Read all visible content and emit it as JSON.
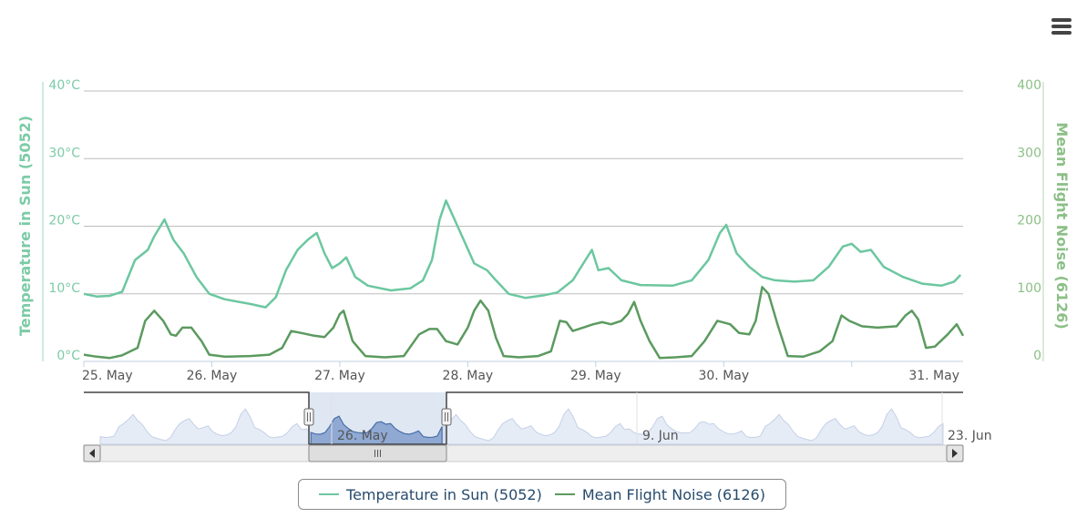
{
  "menu": {
    "icon": "hamburger-menu-icon"
  },
  "colors": {
    "temperature": "#6cc7a0",
    "noise": "#5b9a5f",
    "left_axis": "#7ccba6",
    "right_axis": "#8bbf86",
    "navigator_series": "#4a6fa8",
    "navigator_fill": "#c4d3ea"
  },
  "chart_data": {
    "type": "line",
    "title": "",
    "grid": true,
    "legend_placement": "bottom-center",
    "x_tick_labels": [
      "25. May",
      "26. May",
      "27. May",
      "28. May",
      "29. May",
      "30. May",
      "31. May"
    ],
    "xlim": [
      "25. May",
      "31. May"
    ],
    "y_left": {
      "label": "Temperature in Sun (5052)",
      "ticks": [
        "0°C",
        "10°C",
        "20°C",
        "30°C",
        "40°C"
      ],
      "range": [
        0,
        40
      ]
    },
    "y_right": {
      "label": "Mean Flight Noise (6126)",
      "ticks": [
        "0",
        "100",
        "200",
        "300",
        "400"
      ],
      "range": [
        0,
        400
      ]
    },
    "series": [
      {
        "name": "Temperature in Sun (5052)",
        "axis": "left",
        "points": [
          [
            0.0,
            10.0
          ],
          [
            0.1,
            9.6
          ],
          [
            0.2,
            9.7
          ],
          [
            0.3,
            10.3
          ],
          [
            0.4,
            15.0
          ],
          [
            0.5,
            16.5
          ],
          [
            0.55,
            18.5
          ],
          [
            0.63,
            21.0
          ],
          [
            0.7,
            18.0
          ],
          [
            0.78,
            16.0
          ],
          [
            0.88,
            12.5
          ],
          [
            0.98,
            10.0
          ],
          [
            1.1,
            9.2
          ],
          [
            1.3,
            8.5
          ],
          [
            1.42,
            8.0
          ],
          [
            1.5,
            9.5
          ],
          [
            1.58,
            13.5
          ],
          [
            1.67,
            16.5
          ],
          [
            1.75,
            18.0
          ],
          [
            1.82,
            19.0
          ],
          [
            1.88,
            16.0
          ],
          [
            1.94,
            13.8
          ],
          [
            2.0,
            14.5
          ],
          [
            2.05,
            15.4
          ],
          [
            2.12,
            12.5
          ],
          [
            2.22,
            11.2
          ],
          [
            2.4,
            10.5
          ],
          [
            2.55,
            10.8
          ],
          [
            2.65,
            12.0
          ],
          [
            2.72,
            15.0
          ],
          [
            2.78,
            21.0
          ],
          [
            2.83,
            23.8
          ],
          [
            2.92,
            20.0
          ],
          [
            3.05,
            14.5
          ],
          [
            3.15,
            13.5
          ],
          [
            3.22,
            12.0
          ],
          [
            3.32,
            10.0
          ],
          [
            3.45,
            9.4
          ],
          [
            3.6,
            9.8
          ],
          [
            3.7,
            10.2
          ],
          [
            3.82,
            12.0
          ],
          [
            3.92,
            15.0
          ],
          [
            3.97,
            16.5
          ],
          [
            4.02,
            13.5
          ],
          [
            4.1,
            13.8
          ],
          [
            4.2,
            12.0
          ],
          [
            4.35,
            11.3
          ],
          [
            4.6,
            11.2
          ],
          [
            4.75,
            12.0
          ],
          [
            4.88,
            15.0
          ],
          [
            4.97,
            19.0
          ],
          [
            5.02,
            20.2
          ],
          [
            5.1,
            16.0
          ],
          [
            5.2,
            14.0
          ],
          [
            5.3,
            12.5
          ],
          [
            5.4,
            12.0
          ],
          [
            5.55,
            11.8
          ],
          [
            5.7,
            12.0
          ],
          [
            5.82,
            14.0
          ],
          [
            5.93,
            17.0
          ],
          [
            6.0,
            17.4
          ],
          [
            6.07,
            16.2
          ],
          [
            6.15,
            16.5
          ],
          [
            6.25,
            14.0
          ],
          [
            6.4,
            12.5
          ],
          [
            6.55,
            11.5
          ],
          [
            6.7,
            11.2
          ],
          [
            6.8,
            11.8
          ],
          [
            6.85,
            12.8
          ]
        ]
      },
      {
        "name": "Mean Flight Noise (6126)",
        "axis": "right",
        "points": [
          [
            0.0,
            10
          ],
          [
            0.1,
            7
          ],
          [
            0.2,
            5
          ],
          [
            0.3,
            9
          ],
          [
            0.42,
            20
          ],
          [
            0.48,
            60
          ],
          [
            0.55,
            75
          ],
          [
            0.62,
            60
          ],
          [
            0.68,
            40
          ],
          [
            0.72,
            38
          ],
          [
            0.77,
            50
          ],
          [
            0.84,
            50
          ],
          [
            0.92,
            30
          ],
          [
            0.98,
            10
          ],
          [
            1.1,
            7
          ],
          [
            1.3,
            8
          ],
          [
            1.45,
            10
          ],
          [
            1.55,
            20
          ],
          [
            1.62,
            45
          ],
          [
            1.7,
            42
          ],
          [
            1.8,
            38
          ],
          [
            1.88,
            36
          ],
          [
            1.95,
            50
          ],
          [
            2.0,
            70
          ],
          [
            2.03,
            75
          ],
          [
            2.1,
            30
          ],
          [
            2.2,
            8
          ],
          [
            2.35,
            6
          ],
          [
            2.5,
            8
          ],
          [
            2.62,
            40
          ],
          [
            2.7,
            48
          ],
          [
            2.76,
            48
          ],
          [
            2.83,
            30
          ],
          [
            2.92,
            25
          ],
          [
            3.0,
            50
          ],
          [
            3.05,
            75
          ],
          [
            3.1,
            90
          ],
          [
            3.16,
            75
          ],
          [
            3.22,
            35
          ],
          [
            3.28,
            8
          ],
          [
            3.4,
            6
          ],
          [
            3.55,
            8
          ],
          [
            3.65,
            15
          ],
          [
            3.72,
            60
          ],
          [
            3.77,
            58
          ],
          [
            3.82,
            45
          ],
          [
            3.9,
            50
          ],
          [
            3.98,
            55
          ],
          [
            4.05,
            58
          ],
          [
            4.12,
            55
          ],
          [
            4.2,
            60
          ],
          [
            4.25,
            70
          ],
          [
            4.3,
            88
          ],
          [
            4.35,
            60
          ],
          [
            4.42,
            30
          ],
          [
            4.5,
            5
          ],
          [
            4.62,
            6
          ],
          [
            4.75,
            8
          ],
          [
            4.85,
            30
          ],
          [
            4.95,
            60
          ],
          [
            5.05,
            55
          ],
          [
            5.12,
            42
          ],
          [
            5.2,
            40
          ],
          [
            5.25,
            60
          ],
          [
            5.3,
            110
          ],
          [
            5.35,
            100
          ],
          [
            5.42,
            55
          ],
          [
            5.5,
            8
          ],
          [
            5.62,
            7
          ],
          [
            5.75,
            15
          ],
          [
            5.85,
            30
          ],
          [
            5.92,
            68
          ],
          [
            5.98,
            60
          ],
          [
            6.08,
            52
          ],
          [
            6.2,
            50
          ],
          [
            6.35,
            52
          ],
          [
            6.42,
            68
          ],
          [
            6.47,
            75
          ],
          [
            6.52,
            62
          ],
          [
            6.58,
            20
          ],
          [
            6.65,
            22
          ],
          [
            6.75,
            40
          ],
          [
            6.82,
            55
          ],
          [
            6.87,
            38
          ]
        ]
      }
    ],
    "navigator": {
      "x_tick_labels": [
        "26. May",
        "9. Jun",
        "23. Jun"
      ],
      "selected_range": [
        "25. May",
        "31. May"
      ],
      "scrollbar_left_arrow": "◀",
      "scrollbar_right_arrow": "▶"
    }
  }
}
